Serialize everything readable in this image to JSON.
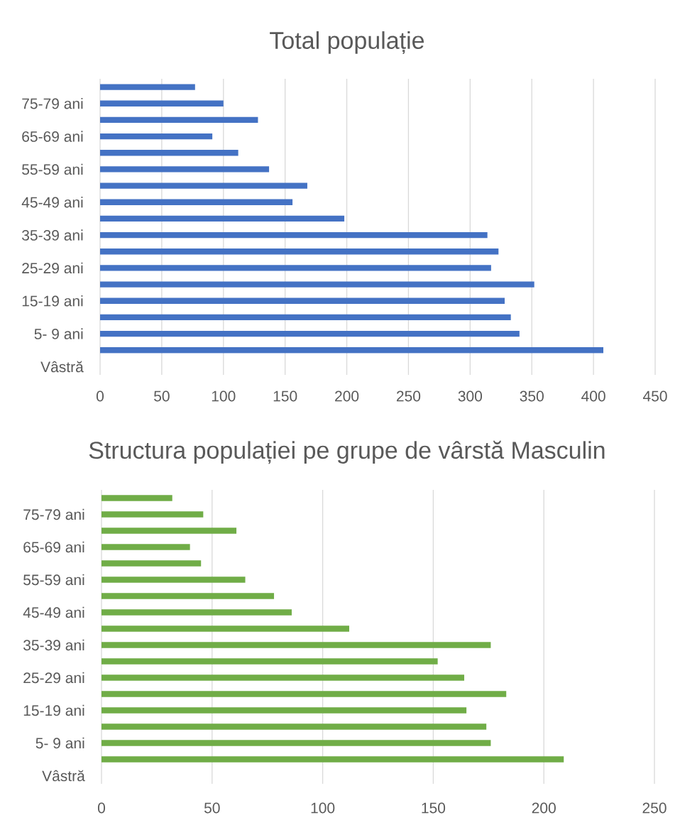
{
  "chart_data": [
    {
      "type": "bar",
      "orientation": "horizontal",
      "title": "Total populație",
      "categories": [
        null,
        "75-79 ani",
        null,
        "65-69 ani",
        null,
        "55-59 ani",
        null,
        "45-49 ani",
        null,
        "35-39 ani",
        null,
        "25-29 ani",
        null,
        "15-19 ani",
        null,
        "5- 9 ani",
        null,
        "Vâstră"
      ],
      "values": [
        77,
        100,
        128,
        91,
        112,
        137,
        168,
        156,
        198,
        314,
        323,
        317,
        352,
        328,
        333,
        340,
        408,
        null
      ],
      "color": "#4472c4",
      "xlim": [
        0,
        450
      ],
      "xticks": [
        0,
        50,
        100,
        150,
        200,
        250,
        300,
        350,
        400,
        450
      ],
      "grid": "x"
    },
    {
      "type": "bar",
      "orientation": "horizontal",
      "title": "Structura populației pe grupe de vârstă Masculin",
      "categories": [
        null,
        "75-79 ani",
        null,
        "65-69 ani",
        null,
        "55-59 ani",
        null,
        "45-49 ani",
        null,
        "35-39 ani",
        null,
        "25-29 ani",
        null,
        "15-19 ani",
        null,
        "5- 9 ani",
        null,
        "Vâstră"
      ],
      "values": [
        32,
        46,
        61,
        40,
        45,
        65,
        78,
        86,
        112,
        176,
        152,
        164,
        183,
        165,
        174,
        176,
        209,
        null
      ],
      "color": "#70ad47",
      "xlim": [
        0,
        250
      ],
      "xticks": [
        0,
        50,
        100,
        150,
        200,
        250
      ],
      "grid": "x"
    }
  ]
}
